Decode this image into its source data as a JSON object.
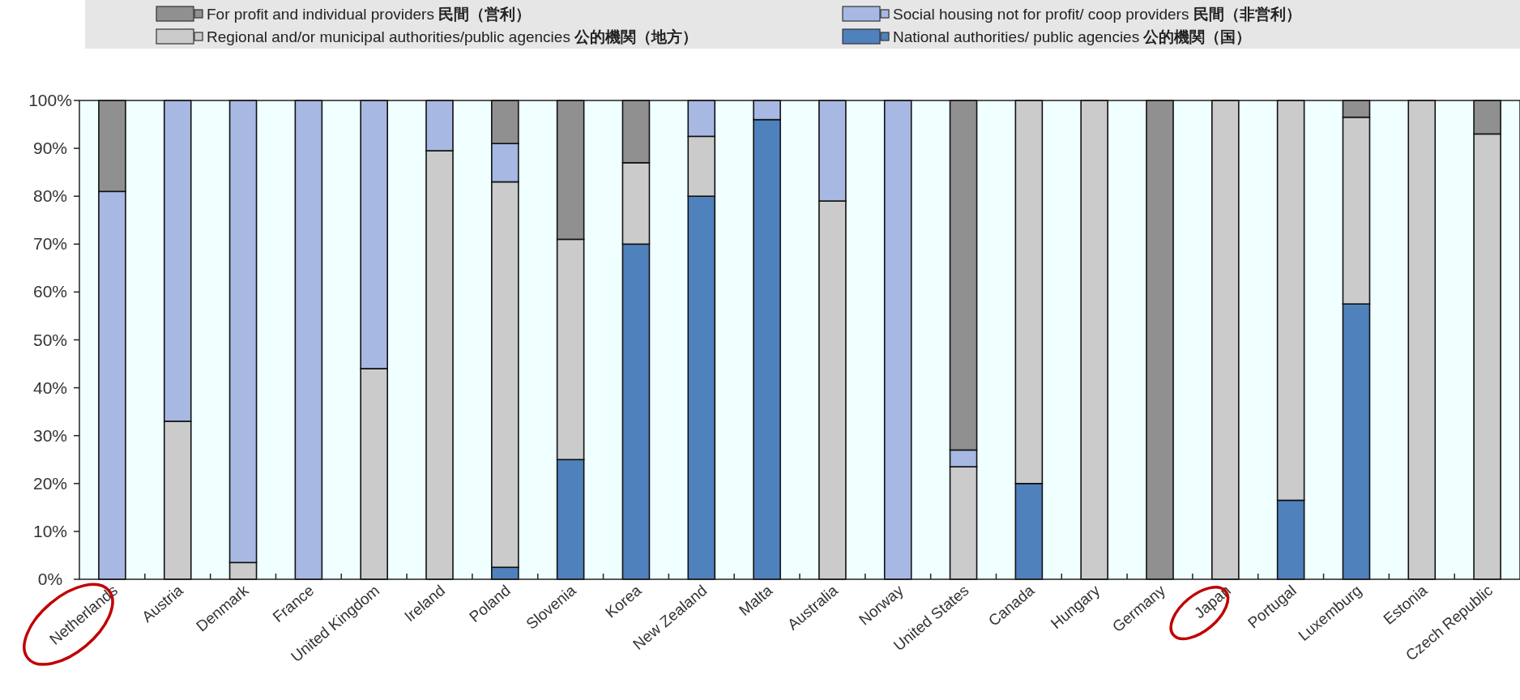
{
  "chart_data": {
    "type": "bar",
    "stacked": true,
    "legend": "top",
    "categories": [
      "Netherlands",
      "Austria",
      "Denmark",
      "France",
      "United Kingdom",
      "Ireland",
      "Poland",
      "Slovenia",
      "Korea",
      "New Zealand",
      "Malta",
      "Australia",
      "Norway",
      "United States",
      "Canada",
      "Hungary",
      "Germany",
      "Japan",
      "Portugal",
      "Luxemburg",
      "Estonia",
      "Czech Republic"
    ],
    "series": [
      {
        "name": "National authorities/ public agencies **公的機関（国）**",
        "color": "#4f81bd",
        "values": [
          0,
          0,
          0,
          0,
          0,
          0,
          2.5,
          25,
          70,
          80,
          96,
          0,
          0,
          0,
          20,
          0,
          0,
          0,
          16.5,
          57.5,
          0,
          0
        ]
      },
      {
        "name": "Regional and/or municipal authorities/public agencies **公的機関（地方）**",
        "color": "#cbcbcb",
        "values": [
          0,
          33,
          3.5,
          0,
          44,
          89.5,
          80.5,
          46,
          17,
          12.5,
          0,
          79,
          0,
          23.5,
          80,
          100,
          0,
          100,
          83.5,
          39,
          100,
          93
        ]
      },
      {
        "name": "Social housing not for profit/ coop providers **民間（非営利）**",
        "color": "#a7b8e3",
        "values": [
          81,
          67,
          96.5,
          100,
          56,
          10.5,
          8,
          0,
          0,
          7.5,
          4,
          21,
          100,
          3.5,
          0,
          0,
          0,
          0,
          0,
          0,
          0,
          0
        ]
      },
      {
        "name": "For profit and individual providers **民間（営利）**",
        "color": "#909090",
        "values": [
          19,
          0,
          0,
          0,
          0,
          0,
          9,
          29,
          13,
          0,
          0,
          0,
          0,
          73,
          0,
          0,
          100,
          0,
          0,
          3.5,
          0,
          7
        ]
      }
    ],
    "ylim": [
      0,
      100
    ],
    "yticks": [
      {
        "value": 0,
        "label": "0%"
      },
      {
        "value": 10,
        "label": "10%"
      },
      {
        "value": 20,
        "label": "20%"
      },
      {
        "value": 30,
        "label": "30%"
      },
      {
        "value": 40,
        "label": "40%"
      },
      {
        "value": 50,
        "label": "50%"
      },
      {
        "value": 60,
        "label": "60%"
      },
      {
        "value": 70,
        "label": "70%"
      },
      {
        "value": 80,
        "label": "80%"
      },
      {
        "value": 90,
        "label": "90%"
      },
      {
        "value": 100,
        "label": "100%"
      }
    ]
  }
}
